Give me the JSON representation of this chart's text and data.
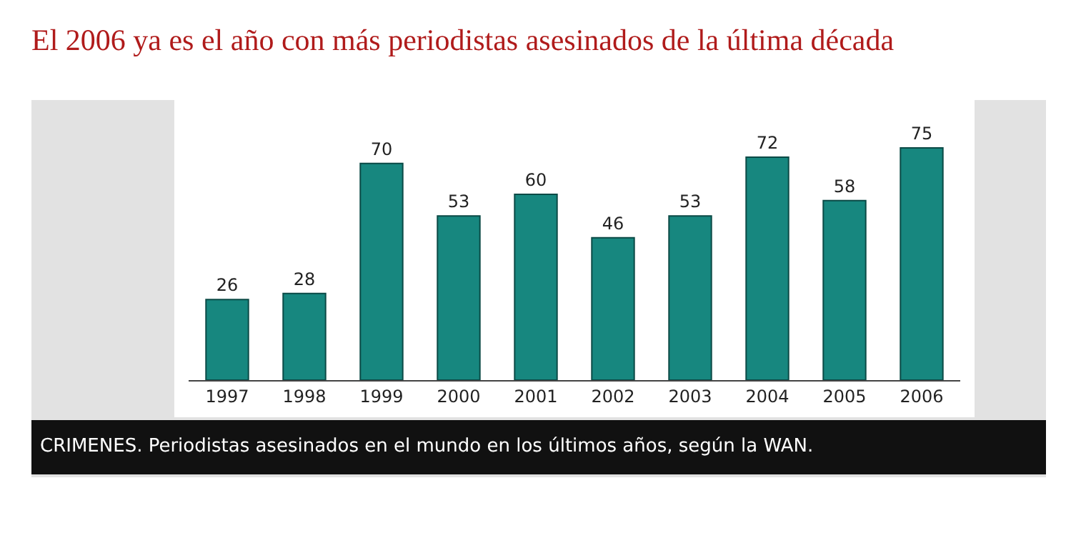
{
  "chart_data": {
    "type": "bar",
    "title": "El 2006 ya es el año con más periodistas asesinados de la última década",
    "categories": [
      "1997",
      "1998",
      "1999",
      "2000",
      "2001",
      "2002",
      "2003",
      "2004",
      "2005",
      "2006"
    ],
    "values": [
      26,
      28,
      70,
      53,
      60,
      46,
      53,
      72,
      58,
      75
    ],
    "color": "#17877f",
    "data_labels": true,
    "grid": false,
    "legend": false,
    "annotations": [
      "CRIMENES. Periodistas asesinados en el mundo en los últimos años, según la WAN."
    ]
  }
}
